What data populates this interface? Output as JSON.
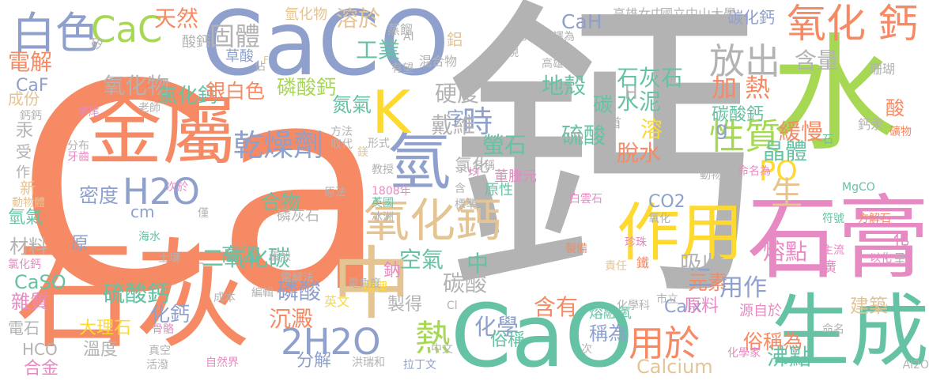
{
  "words": [
    {
      "text": "Ca",
      "color": "#f58a64"
    },
    {
      "text": "鈣",
      "color": "#b3b3b3"
    },
    {
      "text": "CaCO",
      "color": "#8ea0cb"
    },
    {
      "text": "水",
      "color": "#a6d853"
    },
    {
      "text": "石灰",
      "color": "#f58a64"
    },
    {
      "text": "石膏",
      "color": "#e78ac3"
    },
    {
      "text": "生成",
      "color": "#66c2a5"
    },
    {
      "text": "CaO",
      "color": "#66c2a5"
    },
    {
      "text": "中",
      "color": "#e5c494"
    },
    {
      "text": "金屬",
      "color": "#f58a64"
    },
    {
      "text": "氫",
      "color": "#8ea0cb"
    },
    {
      "text": "作用",
      "color": "#fed92f"
    },
    {
      "text": "氧化鈣",
      "color": "#e5c494"
    },
    {
      "text": "氧化 鈣",
      "color": "#f58a64"
    },
    {
      "text": "白色",
      "color": "#8ea0cb"
    },
    {
      "text": "K",
      "color": "#fed92f"
    },
    {
      "text": "H2O",
      "color": "#8ea0cb"
    },
    {
      "text": "2H2O",
      "color": "#8ea0cb"
    },
    {
      "text": "CaC",
      "color": "#a6d853"
    },
    {
      "text": "放出",
      "color": "#b3b3b3"
    },
    {
      "text": "性質",
      "color": "#a6d853"
    },
    {
      "text": "用於",
      "color": "#f58a64"
    },
    {
      "text": "乾燥劑",
      "color": "#8ea0cb"
    },
    {
      "text": "時",
      "color": "#8ea0cb"
    },
    {
      "text": "固體",
      "color": "#b3b3b3"
    },
    {
      "text": "天然",
      "color": "#f58a64"
    },
    {
      "text": "溶於",
      "color": "#e5c494"
    },
    {
      "text": "加 熱",
      "color": "#f58a64"
    },
    {
      "text": "石灰石",
      "color": "#66c2a5"
    },
    {
      "text": "PO",
      "color": "#fed92f"
    },
    {
      "text": "生",
      "color": "#e5c494"
    },
    {
      "text": "碳酸鈣",
      "color": "#66c2a5"
    },
    {
      "text": "二氧化碳",
      "color": "#66c2a5"
    },
    {
      "text": "硫酸鈣",
      "color": "#66c2a5"
    },
    {
      "text": "磷酸",
      "color": "#8ea0cb"
    },
    {
      "text": "空氣",
      "color": "#66c2a5"
    },
    {
      "text": "熱",
      "color": "#a6d853"
    },
    {
      "text": "碳酸",
      "color": "#b3b3b3"
    },
    {
      "text": "含有",
      "color": "#f58a64"
    },
    {
      "text": "元素",
      "color": "#f58a64"
    },
    {
      "text": "用作",
      "color": "#8ea0cb"
    },
    {
      "text": "二",
      "color": "#8ea0cb"
    },
    {
      "text": "化學",
      "color": "#8ea0cb"
    },
    {
      "text": "稱為",
      "color": "#8ea0cb"
    },
    {
      "text": "俗稱為",
      "color": "#f58a64"
    },
    {
      "text": "沸點",
      "color": "#66c2a5"
    },
    {
      "text": "熔點",
      "color": "#e78ac3"
    },
    {
      "text": "吸收",
      "color": "#b3b3b3"
    },
    {
      "text": "Calcium",
      "color": "#e5c494"
    },
    {
      "text": "Calx",
      "color": "#8ea0cb"
    },
    {
      "text": "原料",
      "color": "#e78ac3"
    },
    {
      "text": "硬度",
      "color": "#b3b3b3"
    },
    {
      "text": "戴維",
      "color": "#b3b3b3"
    },
    {
      "text": "螢石",
      "color": "#66c2a5"
    },
    {
      "text": "硫酸",
      "color": "#66c2a5"
    },
    {
      "text": "脫水",
      "color": "#f58a64"
    },
    {
      "text": "溶",
      "color": "#fed92f"
    },
    {
      "text": "晶體",
      "color": "#66c2a5"
    },
    {
      "text": "緩慢",
      "color": "#f58a64"
    },
    {
      "text": "含量",
      "color": "#b3b3b3"
    },
    {
      "text": "水泥",
      "color": "#66c2a5"
    },
    {
      "text": "地殼",
      "color": "#66c2a5"
    },
    {
      "text": "工業",
      "color": "#66c2a5"
    },
    {
      "text": "氫化物",
      "color": "#e5c494"
    },
    {
      "text": "酸鈣",
      "color": "#b3b3b3"
    },
    {
      "text": "草酸",
      "color": "#8ea0cb"
    },
    {
      "text": "電解",
      "color": "#f58a64"
    },
    {
      "text": "CaF",
      "color": "#8ea0cb"
    },
    {
      "text": "成份",
      "color": "#e5c494"
    },
    {
      "text": "氧化物",
      "color": "#b3b3b3"
    },
    {
      "text": "氯化鈣",
      "color": "#66c2a5"
    },
    {
      "text": "銀白色",
      "color": "#f58a64"
    },
    {
      "text": "磷酸鈣",
      "color": "#a6d853"
    },
    {
      "text": "氮氣",
      "color": "#66c2a5"
    },
    {
      "text": "密度",
      "color": "#8ea0cb"
    },
    {
      "text": "合物",
      "color": "#66c2a5"
    },
    {
      "text": "cm",
      "color": "#8ea0cb"
    },
    {
      "text": "氫氣",
      "color": "#66c2a5"
    },
    {
      "text": "材料",
      "color": "#b3b3b3"
    },
    {
      "text": "高溫",
      "color": "#66c2a5"
    },
    {
      "text": "CaSO",
      "color": "#66c2a5"
    },
    {
      "text": "雜質",
      "color": "#e78ac3"
    },
    {
      "text": "硫酸鈣",
      "color": "#66c2a5"
    },
    {
      "text": "化鈣",
      "color": "#8ea0cb"
    },
    {
      "text": "大理石",
      "color": "#fed92f"
    },
    {
      "text": "溫度",
      "color": "#b3b3b3"
    },
    {
      "text": "沉澱",
      "color": "#f58a64"
    },
    {
      "text": "分解",
      "color": "#8ea0cb"
    },
    {
      "text": "製得",
      "color": "#b3b3b3"
    },
    {
      "text": "俗稱",
      "color": "#66c2a5"
    },
    {
      "text": "合金",
      "color": "#e78ac3"
    },
    {
      "text": "HCO",
      "color": "#b3b3b3"
    },
    {
      "text": "電石",
      "color": "#b3b3b3"
    },
    {
      "text": "CO2",
      "color": "#8ea0cb"
    },
    {
      "text": "建築",
      "color": "#e5c494"
    },
    {
      "text": "CaH",
      "color": "#8ea0cb"
    },
    {
      "text": "碳化鈣",
      "color": "#8ea0cb"
    },
    {
      "text": "國立中山大學",
      "color": "#b3b3b3"
    },
    {
      "text": "高雄女中",
      "color": "#b3b3b3"
    },
    {
      "text": "鋁",
      "color": "#e5c494"
    },
    {
      "text": "翻譯為",
      "color": "#b3b3b3"
    },
    {
      "text": "蒸餾",
      "color": "#b3b3b3"
    },
    {
      "text": "有望",
      "color": "#b3b3b3"
    },
    {
      "text": "混合物",
      "color": "#b3b3b3"
    },
    {
      "text": "表現",
      "color": "#b3b3b3"
    },
    {
      "text": "碳",
      "color": "#66c2a5"
    },
    {
      "text": "珊瑚",
      "color": "#b3b3b3"
    },
    {
      "text": "酸",
      "color": "#f58a64"
    },
    {
      "text": "礦物",
      "color": "#f58a64"
    },
    {
      "text": "g",
      "color": "#8ea0cb"
    },
    {
      "text": "H",
      "color": "#b3b3b3"
    },
    {
      "text": "中",
      "color": "#66c2a5"
    },
    {
      "text": "鐵",
      "color": "#f58a64"
    },
    {
      "text": "鈉",
      "color": "#e78ac3"
    },
    {
      "text": "氯化",
      "color": "#b3b3b3"
    },
    {
      "text": "字",
      "color": "#8ea0cb"
    },
    {
      "text": "原",
      "color": "#8ea0cb"
    },
    {
      "text": "汞",
      "color": "#b3b3b3"
    },
    {
      "text": "受",
      "color": "#b3b3b3"
    },
    {
      "text": "作",
      "color": "#b3b3b3"
    },
    {
      "text": "新",
      "color": "#e5c494"
    },
    {
      "text": "化",
      "color": "#e78ac3"
    },
    {
      "text": "呈",
      "color": "#b3b3b3"
    },
    {
      "text": "廣",
      "color": "#e78ac3"
    },
    {
      "text": "石",
      "color": "#66c2a5"
    },
    {
      "text": "首",
      "color": "#b3b3b3"
    },
    {
      "text": "高雄",
      "color": "#b3b3b3"
    },
    {
      "text": "原性",
      "color": "#66c2a5"
    },
    {
      "text": "董騰元",
      "color": "#e78ac3"
    },
    {
      "text": "1808年",
      "color": "#e78ac3"
    },
    {
      "text": "英國",
      "color": "#66c2a5"
    },
    {
      "text": "教授",
      "color": "#b3b3b3"
    },
    {
      "text": "冰洲",
      "color": "#b3b3b3"
    },
    {
      "text": "標準",
      "color": "#b3b3b3"
    },
    {
      "text": "磷灰石",
      "color": "#b3b3b3"
    },
    {
      "text": "海水",
      "color": "#66c2a5"
    },
    {
      "text": "符號",
      "color": "#66c2a5"
    },
    {
      "text": "動物",
      "color": "#b3b3b3"
    },
    {
      "text": "命名為",
      "color": "#e78ac3"
    },
    {
      "text": "MgCO",
      "color": "#66c2a5"
    },
    {
      "text": "方解石",
      "color": "#f58a64"
    },
    {
      "text": "主流",
      "color": "#e78ac3"
    },
    {
      "text": "以化",
      "color": "#e78ac3"
    },
    {
      "text": "珍珠",
      "color": "#e78ac3"
    },
    {
      "text": "責任",
      "color": "#e5c494"
    },
    {
      "text": "製備",
      "color": "#f58a64"
    },
    {
      "text": "白雲石",
      "color": "#e78ac3"
    },
    {
      "text": "氧化",
      "color": "#b3b3b3"
    },
    {
      "text": "熔融氧",
      "color": "#66c2a5"
    },
    {
      "text": "化學科",
      "color": "#b3b3b3"
    },
    {
      "text": "市立",
      "color": "#b3b3b3"
    },
    {
      "text": "源自於",
      "color": "#e78ac3"
    },
    {
      "text": "化學家",
      "color": "#e78ac3"
    },
    {
      "text": "英文",
      "color": "#fed92f"
    },
    {
      "text": "物理",
      "color": "#fed92f"
    },
    {
      "text": "電負度",
      "color": "#b3b3b3"
    },
    {
      "text": "拉丁文",
      "color": "#8ea0cb"
    },
    {
      "text": "洪瑞和",
      "color": "#b3b3b3"
    },
    {
      "text": "自然界",
      "color": "#e78ac3"
    },
    {
      "text": "活潑",
      "color": "#b3b3b3"
    },
    {
      "text": "真空",
      "color": "#b3b3b3"
    },
    {
      "text": "骨骼",
      "color": "#e78ac3"
    },
    {
      "text": "成本",
      "color": "#b3b3b3"
    },
    {
      "text": "編輯",
      "color": "#b3b3b3"
    },
    {
      "text": "電解法",
      "color": "#b3b3b3"
    },
    {
      "text": "蛋殼",
      "color": "#b3b3b3"
    },
    {
      "text": "海生",
      "color": "#f58a64"
    },
    {
      "text": "土壤",
      "color": "#b3b3b3"
    },
    {
      "text": "氯化鈣",
      "color": "#e78ac3"
    },
    {
      "text": "動物體",
      "color": "#e5c494"
    },
    {
      "text": "分布",
      "color": "#b3b3b3"
    },
    {
      "text": "牙齒",
      "color": "#e78ac3"
    },
    {
      "text": "字尾",
      "color": "#e78ac3"
    },
    {
      "text": "老師",
      "color": "#b3b3b3"
    },
    {
      "text": "方法",
      "color": "#b3b3b3"
    },
    {
      "text": "取代",
      "color": "#b3b3b3"
    },
    {
      "text": "形式",
      "color": "#b3b3b3"
    },
    {
      "text": "名稱",
      "color": "#b3b3b3"
    },
    {
      "text": "均",
      "color": "#e78ac3"
    },
    {
      "text": "次於",
      "color": "#e78ac3"
    },
    {
      "text": "僅",
      "color": "#b3b3b3"
    },
    {
      "text": "原法",
      "color": "#b3b3b3"
    },
    {
      "text": "含",
      "color": "#b3b3b3"
    },
    {
      "text": "低",
      "color": "#b3b3b3"
    },
    {
      "text": "電位",
      "color": "#b3b3b3"
    },
    {
      "text": "矽",
      "color": "#b3b3b3"
    },
    {
      "text": "佔",
      "color": "#b3b3b3"
    },
    {
      "text": "鈣汞",
      "color": "#b3b3b3"
    },
    {
      "text": "Al2O",
      "color": "#b3b3b3"
    },
    {
      "text": "命名",
      "color": "#b3b3b3"
    },
    {
      "text": "次",
      "color": "#b3b3b3"
    },
    {
      "text": "中文",
      "color": "#b3b3b3"
    },
    {
      "text": "鎂",
      "color": "#e5c494"
    },
    {
      "text": "ium",
      "color": "#b3b3b3"
    },
    {
      "text": "Cl",
      "color": "#b3b3b3"
    },
    {
      "text": "Al",
      "color": "#b3b3b3"
    },
    {
      "text": "鈣鈣",
      "color": "#b3b3b3"
    },
    {
      "text": "F",
      "color": "#e5c494"
    }
  ]
}
